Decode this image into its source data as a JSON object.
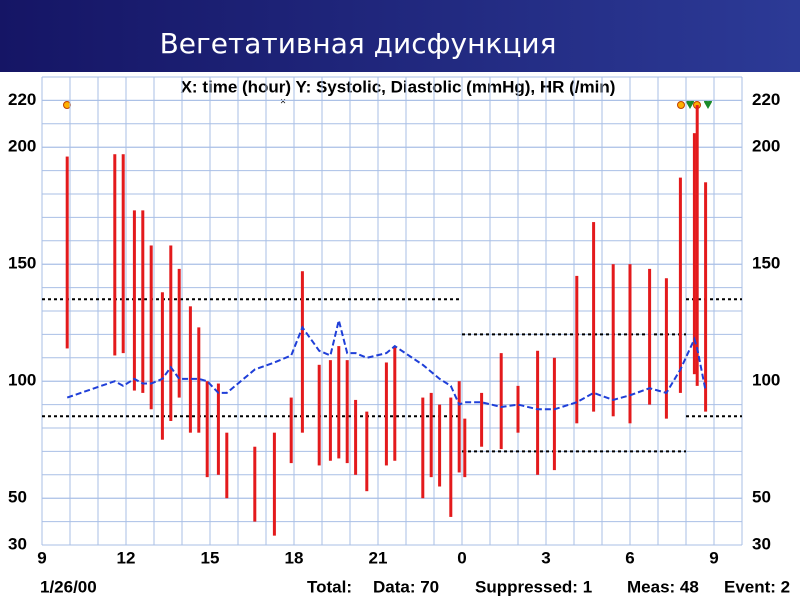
{
  "title": "Вегетативная дисфункция",
  "chart_data": {
    "type": "range",
    "title": "X: time (hour)  Y: Systolic, Diastolic (mmHg), HR (/min)",
    "x": [
      9.9,
      11.6,
      11.9,
      12.3,
      12.6,
      12.9,
      13.3,
      13.6,
      13.9,
      14.3,
      14.6,
      14.9,
      15.3,
      15.6,
      16.6,
      17.3,
      17.9,
      18.3,
      18.9,
      19.3,
      19.6,
      19.9,
      20.2,
      20.6,
      21.3,
      21.6,
      22.6,
      22.9,
      23.2,
      23.6,
      23.9,
      24.1,
      24.7,
      25.4,
      26.0,
      26.7,
      27.3,
      28.1,
      28.7,
      29.4,
      30.0,
      30.7,
      31.3,
      31.8,
      32.3,
      32.4,
      32.7
    ],
    "series": [
      {
        "color": "#e31a1c",
        "values": [
          196,
          197,
          197,
          173,
          173,
          158,
          138,
          158,
          148,
          132,
          123,
          100,
          99,
          78,
          72,
          78,
          93,
          147,
          107,
          109,
          115,
          109,
          92,
          87,
          108,
          115,
          93,
          95,
          90,
          93,
          100,
          84,
          95,
          112,
          98,
          113,
          110,
          145,
          168,
          150,
          150,
          148,
          144,
          187,
          206,
          218,
          185
        ]
      },
      {
        "color": "#e31a1c",
        "values": [
          114,
          111,
          112,
          96,
          95,
          88,
          75,
          83,
          93,
          78,
          78,
          59,
          60,
          50,
          40,
          34,
          65,
          78,
          64,
          66,
          67,
          65,
          60,
          53,
          64,
          66,
          50,
          59,
          55,
          42,
          61,
          59,
          72,
          71,
          78,
          60,
          62,
          82,
          87,
          85,
          82,
          90,
          84,
          95,
          103,
          98,
          87
        ]
      },
      {
        "color": "#1f3fd8",
        "values": [
          93,
          100,
          98,
          101,
          99,
          99,
          101,
          106,
          101,
          101,
          101,
          100,
          95,
          95,
          105,
          108,
          111,
          123,
          113,
          111,
          126,
          112,
          112,
          110,
          112,
          115,
          107,
          104,
          101,
          98,
          90,
          91,
          91,
          89,
          90,
          88,
          88,
          91,
          95,
          92,
          94,
          97,
          95,
          105,
          118,
          114,
          96
        ]
      }
    ],
    "thresholds": [
      {
        "x": [
          9,
          24
        ],
        "values": [
          135,
          85
        ]
      },
      {
        "x": [
          24,
          32
        ],
        "values": [
          120,
          70
        ]
      },
      {
        "x": [
          32,
          34
        ],
        "values": [
          135,
          85
        ]
      }
    ],
    "xlim": [
      9,
      34
    ],
    "xticks": [
      9,
      12,
      15,
      18,
      21,
      {
        "value": 24,
        "label": "0"
      },
      {
        "value": 27,
        "label": "3"
      },
      {
        "value": 30,
        "label": "6"
      },
      {
        "value": 33,
        "label": "9"
      }
    ],
    "ylim": [
      30,
      230
    ],
    "yticks": [
      30,
      50,
      100,
      150,
      200,
      220
    ],
    "grid": true
  },
  "footer": {
    "date": "1/26/00",
    "total": "Total:",
    "data": "Data: 70",
    "suppressed": "Suppressed: 1",
    "meas": "Meas: 48",
    "event": "Event: 2"
  }
}
